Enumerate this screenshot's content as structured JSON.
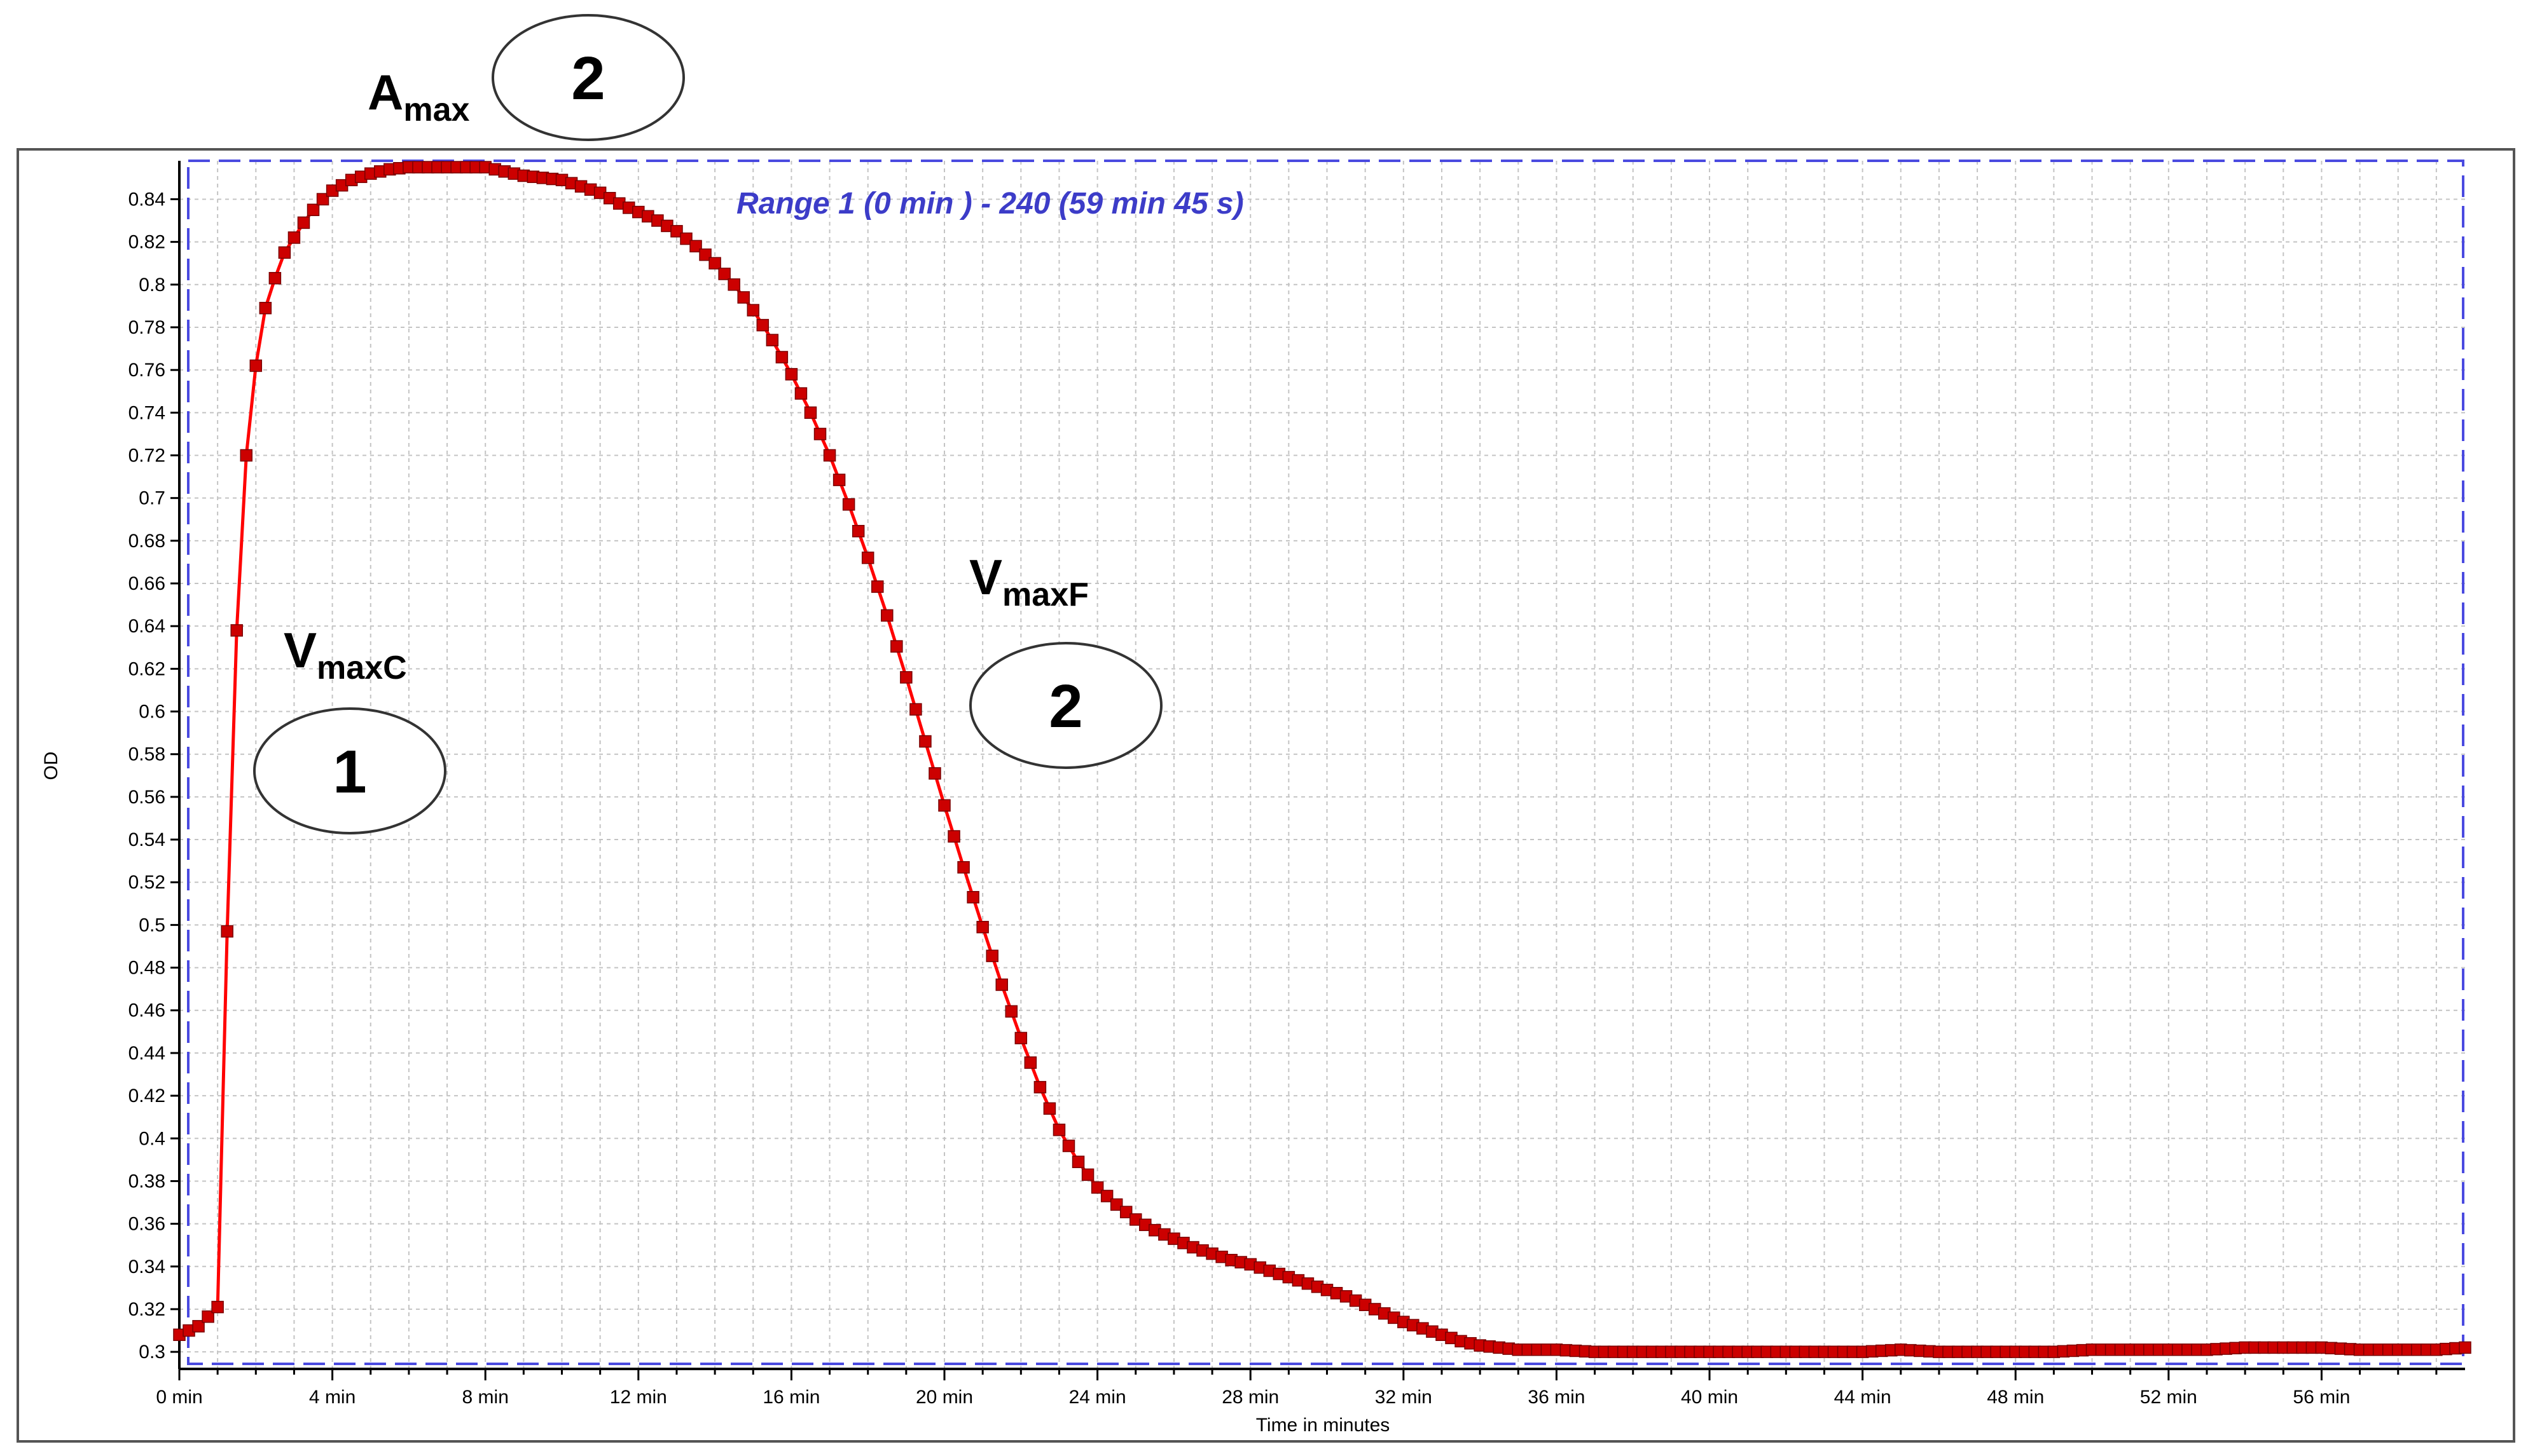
{
  "chart_data": {
    "type": "scatter",
    "x_unit": "min",
    "xlabel": "Time in minutes",
    "ylabel": "OD",
    "xlim": [
      0,
      59.75
    ],
    "ylim": [
      0.292,
      0.858
    ],
    "x_ticks": [
      {
        "value": 0,
        "label": "0 min"
      },
      {
        "value": 4,
        "label": "4 min"
      },
      {
        "value": 8,
        "label": "8 min"
      },
      {
        "value": 12,
        "label": "12 min"
      },
      {
        "value": 16,
        "label": "16 min"
      },
      {
        "value": 20,
        "label": "20 min"
      },
      {
        "value": 24,
        "label": "24 min"
      },
      {
        "value": 28,
        "label": "28 min"
      },
      {
        "value": 32,
        "label": "32 min"
      },
      {
        "value": 36,
        "label": "36 min"
      },
      {
        "value": 40,
        "label": "40 min"
      },
      {
        "value": 44,
        "label": "44 min"
      },
      {
        "value": 48,
        "label": "48 min"
      },
      {
        "value": 52,
        "label": "52 min"
      },
      {
        "value": 56,
        "label": "56 min"
      }
    ],
    "y_ticks": [
      {
        "value": 0.3,
        "label": "0.3"
      },
      {
        "value": 0.32,
        "label": "0.32"
      },
      {
        "value": 0.34,
        "label": "0.34"
      },
      {
        "value": 0.36,
        "label": "0.36"
      },
      {
        "value": 0.38,
        "label": "0.38"
      },
      {
        "value": 0.4,
        "label": "0.4"
      },
      {
        "value": 0.42,
        "label": "0.42"
      },
      {
        "value": 0.44,
        "label": "0.44"
      },
      {
        "value": 0.46,
        "label": "0.46"
      },
      {
        "value": 0.48,
        "label": "0.48"
      },
      {
        "value": 0.5,
        "label": "0.5"
      },
      {
        "value": 0.52,
        "label": "0.52"
      },
      {
        "value": 0.54,
        "label": "0.54"
      },
      {
        "value": 0.56,
        "label": "0.56"
      },
      {
        "value": 0.58,
        "label": "0.58"
      },
      {
        "value": 0.6,
        "label": "0.6"
      },
      {
        "value": 0.62,
        "label": "0.62"
      },
      {
        "value": 0.64,
        "label": "0.64"
      },
      {
        "value": 0.66,
        "label": "0.66"
      },
      {
        "value": 0.68,
        "label": "0.68"
      },
      {
        "value": 0.7,
        "label": "0.7"
      },
      {
        "value": 0.72,
        "label": "0.72"
      },
      {
        "value": 0.74,
        "label": "0.74"
      },
      {
        "value": 0.76,
        "label": "0.76"
      },
      {
        "value": 0.78,
        "label": "0.78"
      },
      {
        "value": 0.8,
        "label": "0.8"
      },
      {
        "value": 0.82,
        "label": "0.82"
      },
      {
        "value": 0.84,
        "label": "0.84"
      }
    ],
    "grid": true,
    "range_label": "Range 1 (0 min ) - 240 (59 min 45 s)",
    "series": [
      {
        "color": "#ff0000",
        "marker_color": "#cc0000",
        "x": [
          0,
          0.5,
          1,
          1.25,
          1.5,
          1.75,
          2,
          2.25,
          2.5,
          2.75,
          3,
          3.25,
          3.5,
          3.75,
          4,
          4.5,
          5,
          5.5,
          6,
          6.5,
          7,
          7.5,
          8,
          8.5,
          9,
          9.5,
          10,
          10.5,
          11,
          11.5,
          12,
          12.5,
          13,
          13.5,
          14,
          14.5,
          15,
          15.5,
          16,
          16.5,
          17,
          17.5,
          18,
          18.5,
          19,
          19.5,
          20,
          20.5,
          21,
          21.5,
          22,
          22.5,
          23,
          23.5,
          24,
          24.5,
          25,
          25.5,
          26,
          26.5,
          27,
          27.5,
          28,
          28.5,
          29,
          29.5,
          30,
          30.5,
          31,
          31.5,
          32,
          32.5,
          33,
          33.5,
          34,
          34.5,
          35,
          35.5,
          36,
          37,
          38,
          39,
          40,
          41,
          42,
          43,
          44,
          45,
          46,
          47,
          48,
          49,
          50,
          51,
          52,
          53,
          54,
          55,
          56,
          57,
          58,
          59,
          59.75
        ],
        "y": [
          0.308,
          0.312,
          0.321,
          0.497,
          0.638,
          0.72,
          0.762,
          0.789,
          0.803,
          0.815,
          0.822,
          0.829,
          0.835,
          0.84,
          0.844,
          0.849,
          0.852,
          0.854,
          0.855,
          0.855,
          0.855,
          0.855,
          0.855,
          0.853,
          0.851,
          0.85,
          0.849,
          0.846,
          0.843,
          0.838,
          0.834,
          0.83,
          0.825,
          0.818,
          0.81,
          0.8,
          0.788,
          0.774,
          0.758,
          0.74,
          0.72,
          0.697,
          0.672,
          0.645,
          0.616,
          0.586,
          0.556,
          0.527,
          0.499,
          0.472,
          0.447,
          0.424,
          0.404,
          0.389,
          0.377,
          0.369,
          0.362,
          0.357,
          0.353,
          0.349,
          0.346,
          0.343,
          0.341,
          0.338,
          0.335,
          0.332,
          0.329,
          0.326,
          0.322,
          0.318,
          0.314,
          0.311,
          0.308,
          0.305,
          0.303,
          0.302,
          0.301,
          0.301,
          0.301,
          0.3,
          0.3,
          0.3,
          0.3,
          0.3,
          0.3,
          0.3,
          0.3,
          0.301,
          0.3,
          0.3,
          0.3,
          0.3,
          0.301,
          0.301,
          0.301,
          0.301,
          0.302,
          0.302,
          0.302,
          0.301,
          0.301,
          0.301,
          0.302
        ]
      }
    ]
  },
  "annotations": {
    "a_max": {
      "main": "A",
      "sub": "max",
      "number": "2"
    },
    "v_max_c": {
      "main": "V",
      "sub": "maxC",
      "number": "1"
    },
    "v_max_f": {
      "main": "V",
      "sub": "maxF",
      "number": "2"
    }
  }
}
